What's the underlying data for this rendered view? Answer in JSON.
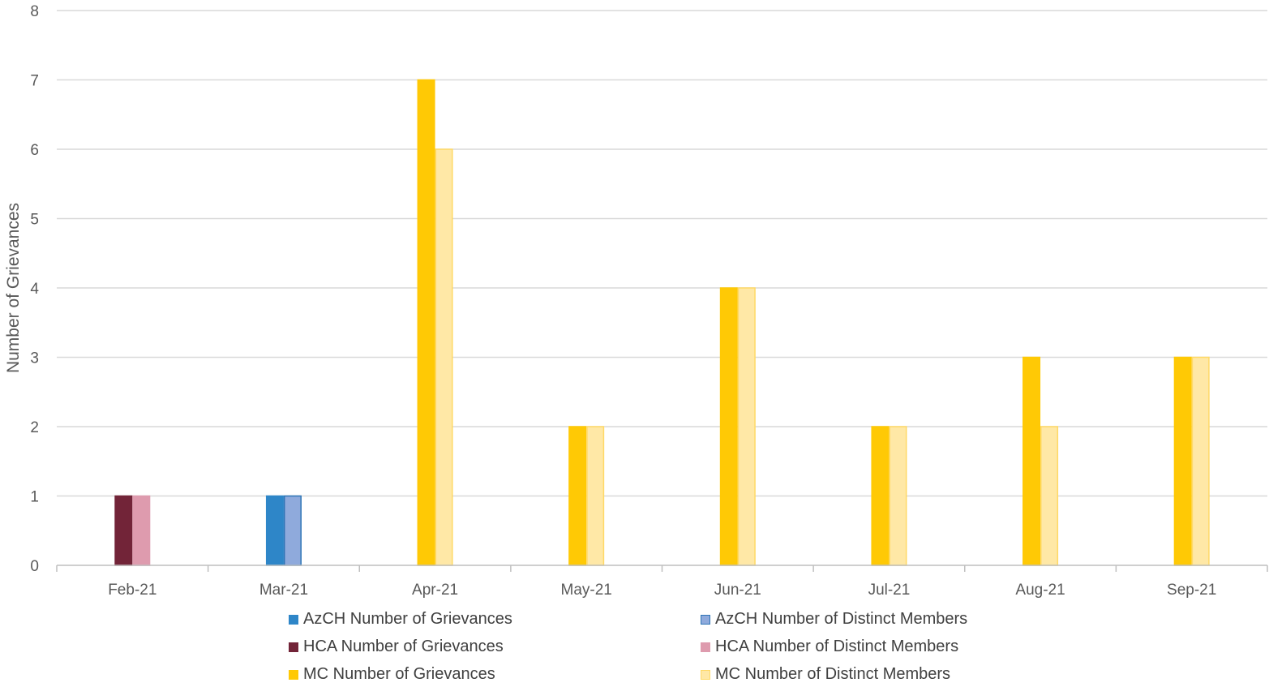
{
  "chart_data": {
    "type": "bar",
    "title": "",
    "xlabel": "",
    "ylabel": "Number of Grievances",
    "ylim": [
      0,
      8
    ],
    "yticks": [
      0,
      1,
      2,
      3,
      4,
      5,
      6,
      7,
      8
    ],
    "grid": true,
    "legend_position": "bottom",
    "categories": [
      "Feb-21",
      "Mar-21",
      "Apr-21",
      "May-21",
      "Jun-21",
      "Jul-21",
      "Aug-21",
      "Sep-21"
    ],
    "series": [
      {
        "name": "AzCH Number of Grievances",
        "color": "#2E86C8",
        "border": "#2E86C8",
        "values": [
          null,
          1,
          null,
          null,
          null,
          null,
          null,
          null
        ]
      },
      {
        "name": "AzCH Number of Distinct Members",
        "color": "#8FAADC",
        "border": "#2E75B6",
        "values": [
          null,
          1,
          null,
          null,
          null,
          null,
          null,
          null
        ]
      },
      {
        "name": "HCA Number of Grievances",
        "color": "#722438",
        "border": "#722438",
        "values": [
          1,
          null,
          null,
          null,
          null,
          null,
          null,
          null
        ]
      },
      {
        "name": "HCA Number of Distinct Members",
        "color": "#DE9BAE",
        "border": "#DE9BAE",
        "values": [
          1,
          null,
          null,
          null,
          null,
          null,
          null,
          null
        ]
      },
      {
        "name": "MC Number of Grievances",
        "color": "#FFC905",
        "border": "#FFC905",
        "values": [
          null,
          null,
          7,
          2,
          4,
          2,
          3,
          3
        ]
      },
      {
        "name": "MC Number of Distinct Members",
        "color": "#FFE8A6",
        "border": "#FFD966",
        "values": [
          null,
          null,
          6,
          2,
          4,
          2,
          2,
          3
        ]
      }
    ]
  }
}
